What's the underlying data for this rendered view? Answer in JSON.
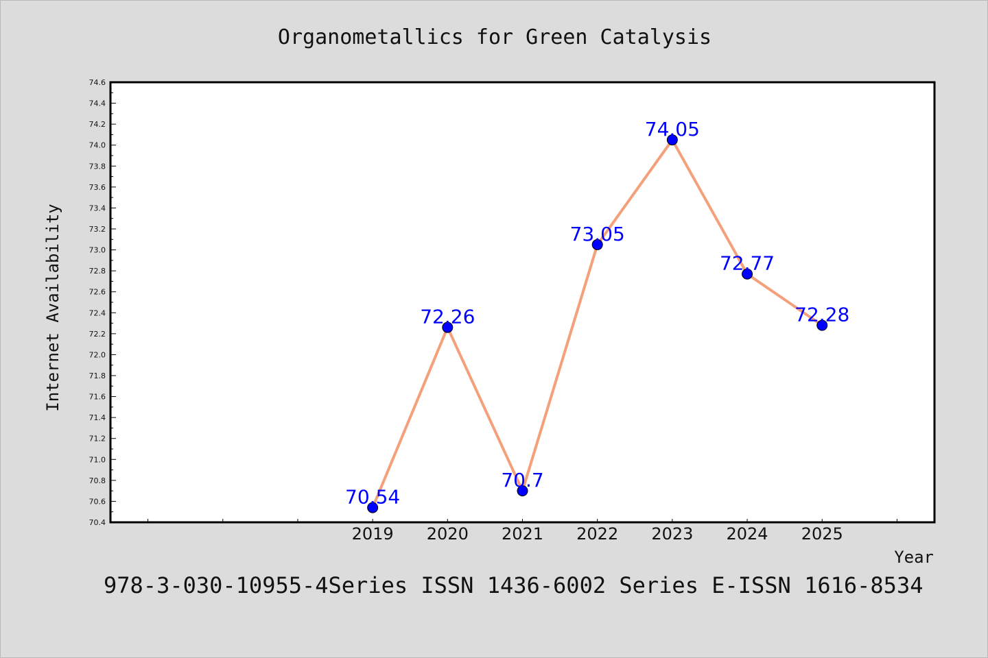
{
  "chart_data": {
    "type": "line",
    "title": "Organometallics for Green Catalysis",
    "xlabel": "Year",
    "ylabel": "Internet Availability",
    "x": [
      2019,
      2020,
      2021,
      2022,
      2023,
      2024,
      2025
    ],
    "xtick_labels": [
      "2019",
      "2020",
      "2021",
      "2022",
      "2023",
      "2024",
      "2025"
    ],
    "xlim": [
      2015.5,
      2026.5
    ],
    "ylim": [
      70.4,
      74.6
    ],
    "yticks": [
      70.4,
      70.6,
      70.8,
      71.0,
      71.2,
      71.4,
      71.6,
      71.8,
      72.0,
      72.2,
      72.4,
      72.6,
      72.8,
      73.0,
      73.2,
      73.4,
      73.6,
      73.8,
      74.0,
      74.2,
      74.4,
      74.6
    ],
    "ytick_labels": [
      "70.4",
      "70.6",
      "70.8",
      "71.0",
      "71.2",
      "71.4",
      "71.6",
      "71.8",
      "72.0",
      "72.2",
      "72.4",
      "72.6",
      "72.8",
      "73.0",
      "73.2",
      "73.4",
      "73.6",
      "73.8",
      "74.0",
      "74.2",
      "74.4",
      "74.6"
    ],
    "series": [
      {
        "values": [
          70.54,
          72.26,
          70.7,
          73.05,
          74.05,
          72.77,
          72.28
        ],
        "data_labels": [
          "70.54",
          "72.26",
          "70.7",
          "73.05",
          "74.05",
          "72.77",
          "72.28"
        ],
        "line_color": "#f4a07a",
        "marker_color": "#0000ff"
      }
    ],
    "grid": false,
    "footer": "978-3-030-10955-4Series ISSN 1436-6002 Series E-ISSN 1616-8534"
  },
  "colors": {
    "background": "#dcdcdc",
    "plot_background": "#ffffff",
    "axis": "#000000",
    "data_label": "#0000ff"
  }
}
